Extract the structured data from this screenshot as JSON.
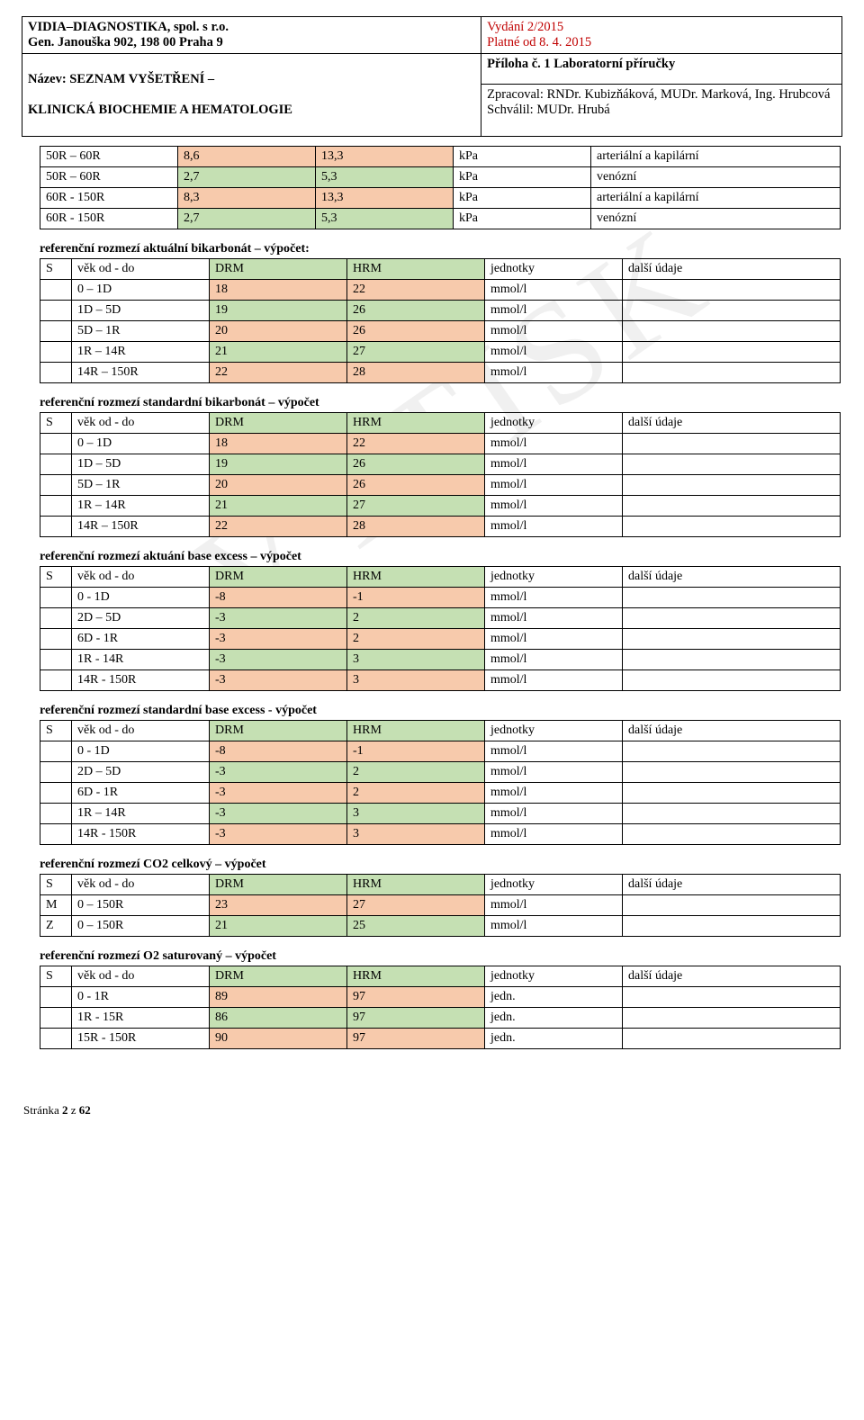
{
  "header": {
    "org_line1": "VIDIA–DIAGNOSTIKA, spol. s r.o.",
    "org_line2": "Gen. Janouška 902, 198 00 Praha 9",
    "title_line1": "Název: SEZNAM VYŠETŘENÍ –",
    "title_line2": "KLINICKÁ BIOCHEMIE A HEMATOLOGIE",
    "edition": "Vydání 2/2015",
    "valid_from": "Platné od 8. 4. 2015",
    "appendix": "Příloha č. 1 Laboratorní příručky",
    "prepared": "Zpracoval: RNDr. Kubizňáková, MUDr. Marková, Ing. Hrubcová",
    "approved": "Schválil: MUDr. Hrubá"
  },
  "watermark_text": "VÝTISK",
  "table0": {
    "rows": [
      {
        "age": "50R – 60R",
        "drm": "8,6",
        "hrm": "13,3",
        "unit": "kPa",
        "note": "arteriální a kapilární",
        "c": "orange"
      },
      {
        "age": "50R – 60R",
        "drm": "2,7",
        "hrm": "5,3",
        "unit": "kPa",
        "note": "venózní",
        "c": "green"
      },
      {
        "age": "60R - 150R",
        "drm": "8,3",
        "hrm": "13,3",
        "unit": "kPa",
        "note": "arteriální a kapilární",
        "c": "orange"
      },
      {
        "age": "60R - 150R",
        "drm": "2,7",
        "hrm": "5,3",
        "unit": "kPa",
        "note": "venózní",
        "c": "green"
      }
    ]
  },
  "section1": {
    "title": "referenční rozmezí aktuální bikarbonát – výpočet:",
    "head": {
      "s": "S",
      "age": "věk od - do",
      "drm": "DRM",
      "hrm": "HRM",
      "unit": "jednotky",
      "note": "další údaje"
    },
    "rows": [
      {
        "age": "0 – 1D",
        "drm": "18",
        "hrm": "22",
        "unit": "mmol/l",
        "c": "orange"
      },
      {
        "age": "1D – 5D",
        "drm": "19",
        "hrm": "26",
        "unit": "mmol/l",
        "c": "green"
      },
      {
        "age": "5D – 1R",
        "drm": "20",
        "hrm": "26",
        "unit": "mmol/l",
        "c": "orange"
      },
      {
        "age": "1R – 14R",
        "drm": "21",
        "hrm": "27",
        "unit": "mmol/l",
        "c": "green"
      },
      {
        "age": "14R – 150R",
        "drm": "22",
        "hrm": "28",
        "unit": "mmol/l",
        "c": "orange"
      }
    ]
  },
  "section2": {
    "title": "referenční rozmezí standardní bikarbonát – výpočet",
    "head": {
      "s": "S",
      "age": "věk od - do",
      "drm": "DRM",
      "hrm": "HRM",
      "unit": "jednotky",
      "note": "další údaje"
    },
    "rows": [
      {
        "age": "0 – 1D",
        "drm": "18",
        "hrm": "22",
        "unit": "mmol/l",
        "c": "orange"
      },
      {
        "age": "1D – 5D",
        "drm": "19",
        "hrm": "26",
        "unit": "mmol/l",
        "c": "green"
      },
      {
        "age": "5D – 1R",
        "drm": "20",
        "hrm": "26",
        "unit": "mmol/l",
        "c": "orange"
      },
      {
        "age": "1R – 14R",
        "drm": "21",
        "hrm": "27",
        "unit": "mmol/l",
        "c": "green"
      },
      {
        "age": "14R – 150R",
        "drm": "22",
        "hrm": "28",
        "unit": "mmol/l",
        "c": "orange"
      }
    ]
  },
  "section3": {
    "title": "referenční rozmezí aktuání base excess – výpočet",
    "head": {
      "s": "S",
      "age": "věk od - do",
      "drm": "DRM",
      "hrm": "HRM",
      "unit": "jednotky",
      "note": "další údaje"
    },
    "rows": [
      {
        "age": "0 - 1D",
        "drm": "-8",
        "hrm": "-1",
        "unit": "mmol/l",
        "c": "orange"
      },
      {
        "age": "2D – 5D",
        "drm": "-3",
        "hrm": "2",
        "unit": "mmol/l",
        "c": "green"
      },
      {
        "age": "6D - 1R",
        "drm": "-3",
        "hrm": "2",
        "unit": "mmol/l",
        "c": "orange"
      },
      {
        "age": "1R - 14R",
        "drm": "-3",
        "hrm": "3",
        "unit": "mmol/l",
        "c": "green"
      },
      {
        "age": "14R - 150R",
        "drm": "-3",
        "hrm": "3",
        "unit": "mmol/l",
        "c": "orange"
      }
    ]
  },
  "section4": {
    "title": "referenční rozmezí standardní base excess - výpočet",
    "head": {
      "s": "S",
      "age": "věk od - do",
      "drm": "DRM",
      "hrm": "HRM",
      "unit": "jednotky",
      "note": "další údaje"
    },
    "rows": [
      {
        "age": "0 - 1D",
        "drm": "-8",
        "hrm": "-1",
        "unit": "mmol/l",
        "c": "orange"
      },
      {
        "age": "2D – 5D",
        "drm": "-3",
        "hrm": "2",
        "unit": "mmol/l",
        "c": "green"
      },
      {
        "age": "6D - 1R",
        "drm": "-3",
        "hrm": "2",
        "unit": "mmol/l",
        "c": "orange"
      },
      {
        "age": "1R – 14R",
        "drm": "-3",
        "hrm": "3",
        "unit": "mmol/l",
        "c": "green"
      },
      {
        "age": "14R - 150R",
        "drm": "-3",
        "hrm": "3",
        "unit": "mmol/l",
        "c": "orange"
      }
    ]
  },
  "section5": {
    "title": "referenční rozmezí CO2 celkový – výpočet",
    "head": {
      "s": "S",
      "age": "věk od - do",
      "drm": "DRM",
      "hrm": "HRM",
      "unit": "jednotky",
      "note": "další údaje"
    },
    "rows": [
      {
        "s": "M",
        "age": "0 – 150R",
        "drm": "23",
        "hrm": "27",
        "unit": "mmol/l",
        "c": "orange"
      },
      {
        "s": "Z",
        "age": "0 – 150R",
        "drm": "21",
        "hrm": "25",
        "unit": "mmol/l",
        "c": "green"
      }
    ]
  },
  "section6": {
    "title": "referenční rozmezí O2 saturovaný – výpočet",
    "head": {
      "s": "S",
      "age": "věk od - do",
      "drm": "DRM",
      "hrm": "HRM",
      "unit": "jednotky",
      "note": "další údaje"
    },
    "rows": [
      {
        "age": "0 - 1R",
        "drm": "89",
        "hrm": "97",
        "unit": "jedn.",
        "c": "orange"
      },
      {
        "age": "1R - 15R",
        "drm": "86",
        "hrm": "97",
        "unit": "jedn.",
        "c": "green"
      },
      {
        "age": "15R - 150R",
        "drm": "90",
        "hrm": "97",
        "unit": "jedn.",
        "c": "orange"
      }
    ]
  },
  "footer": {
    "page": "Stránka ",
    "num": "2",
    "of": " z ",
    "total": "62"
  }
}
